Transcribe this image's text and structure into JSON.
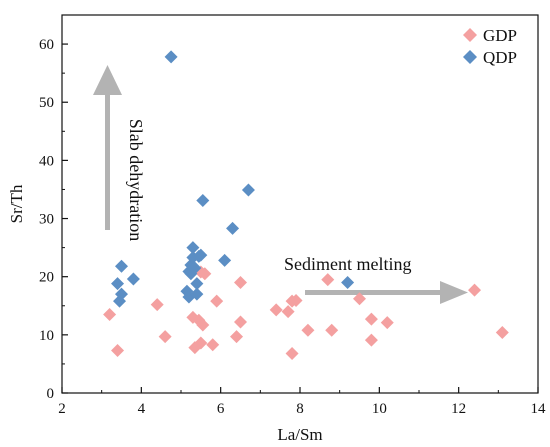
{
  "chart_data": {
    "type": "scatter",
    "xlabel": "La/Sm",
    "ylabel": "Sr/Th",
    "xlim": [
      2,
      14
    ],
    "ylim": [
      0,
      65
    ],
    "xticks": [
      "2",
      "4",
      "6",
      "8",
      "10",
      "12",
      "14"
    ],
    "yticks": [
      "0",
      "10",
      "20",
      "30",
      "40",
      "50",
      "60"
    ],
    "grid": false,
    "legend_position": "top-right",
    "series": [
      {
        "name": "GDP",
        "color": "#f4a0a0",
        "marker": "diamond",
        "points": [
          [
            3.2,
            13.5
          ],
          [
            3.4,
            7.3
          ],
          [
            4.4,
            15.2
          ],
          [
            4.6,
            9.7
          ],
          [
            5.3,
            13.0
          ],
          [
            5.35,
            7.8
          ],
          [
            5.45,
            12.5
          ],
          [
            5.5,
            8.6
          ],
          [
            5.55,
            11.7
          ],
          [
            5.5,
            20.8
          ],
          [
            5.6,
            20.5
          ],
          [
            5.8,
            8.3
          ],
          [
            5.9,
            15.8
          ],
          [
            6.4,
            9.7
          ],
          [
            6.5,
            19.0
          ],
          [
            6.5,
            12.2
          ],
          [
            7.4,
            14.3
          ],
          [
            7.7,
            14.0
          ],
          [
            7.8,
            15.8
          ],
          [
            7.8,
            6.8
          ],
          [
            7.9,
            15.9
          ],
          [
            8.2,
            10.8
          ],
          [
            8.7,
            19.5
          ],
          [
            8.8,
            10.8
          ],
          [
            9.5,
            16.2
          ],
          [
            9.8,
            12.7
          ],
          [
            9.8,
            9.1
          ],
          [
            10.2,
            12.1
          ],
          [
            12.4,
            17.7
          ],
          [
            13.1,
            10.4
          ]
        ]
      },
      {
        "name": "QDP",
        "color": "#5b8ec4",
        "marker": "diamond",
        "points": [
          [
            3.4,
            18.8
          ],
          [
            3.45,
            15.8
          ],
          [
            3.5,
            17.0
          ],
          [
            3.5,
            21.8
          ],
          [
            3.8,
            19.6
          ],
          [
            4.75,
            57.8
          ],
          [
            5.15,
            17.5
          ],
          [
            5.2,
            16.5
          ],
          [
            5.2,
            20.9
          ],
          [
            5.25,
            20.5
          ],
          [
            5.25,
            22.0
          ],
          [
            5.3,
            25.0
          ],
          [
            5.3,
            23.3
          ],
          [
            5.35,
            21.5
          ],
          [
            5.4,
            17.0
          ],
          [
            5.4,
            18.8
          ],
          [
            5.45,
            23.5
          ],
          [
            5.5,
            23.7
          ],
          [
            5.55,
            33.1
          ],
          [
            6.1,
            22.8
          ],
          [
            6.3,
            28.3
          ],
          [
            6.7,
            34.9
          ],
          [
            9.2,
            19.0
          ]
        ]
      }
    ],
    "annotations": [
      {
        "text": "Slab dehydration",
        "direction": "up"
      },
      {
        "text": "Sediment melting",
        "direction": "right"
      }
    ]
  }
}
